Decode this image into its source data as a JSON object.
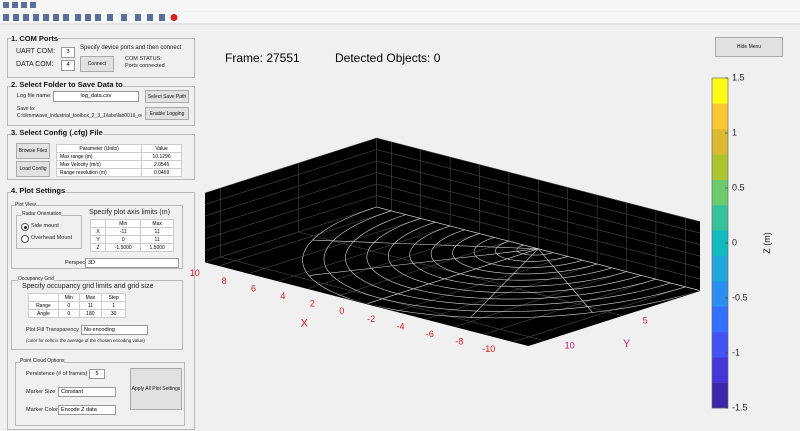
{
  "window": {
    "frame_label": "Frame: 27551",
    "detected_label": "Detected Objects: 0",
    "hide_button": "Hide Menu"
  },
  "com_ports": {
    "title": "1. COM Ports",
    "uart_label": "UART COM:",
    "uart_value": "3",
    "data_label": "DATA COM:",
    "data_value": "4",
    "instruction": "Specify device ports and then connect",
    "connect_button": "Connect",
    "status": "COM STATUS: Ports connected"
  },
  "save_folder": {
    "title": "2. Select Folder to Save Data to",
    "log_label": "Log file name:",
    "log_value": "log_data.csv",
    "select_button": "Select Save Path",
    "save_to_label": "Save to:",
    "save_path": "C:\\ti\\mmwave_industrial_toolbox_2_3_1\\labs\\lab0016_ocm",
    "logging_button": "Enable Logging"
  },
  "config": {
    "title": "3. Select Config (.cfg) File",
    "browse_button": "Browse Files",
    "load_button": "Load Config",
    "table": {
      "headers": [
        "Parameter (Units)",
        "Value"
      ],
      "rows": [
        [
          "Max range (m)",
          "10.1296"
        ],
        [
          "Max Velocity (m/s)",
          "2.0545"
        ],
        [
          "Range resolution (m)",
          "0.0469"
        ]
      ]
    }
  },
  "plot_settings": {
    "title": "4. Plot Settings",
    "plot_view": "Plot View",
    "orientation_title": "Radar Orientation",
    "side_mount": "Side mount",
    "overhead_mount": "Overhead Mount",
    "axis_limits_title": "Specify plot axis limits (m)",
    "axis_table": {
      "headers": [
        "Min",
        "Max"
      ],
      "rows": [
        [
          "X",
          "-11",
          "11"
        ],
        [
          "Y",
          "0",
          "11"
        ],
        [
          "Z",
          "-1.5000",
          "1.5000"
        ]
      ]
    },
    "perspective_label": "Perspective:",
    "perspective_value": "3D",
    "occupancy_title": "Occupancy Grid",
    "occupancy_instruction": "Specify occupancy grid limits and grid size",
    "occupancy_table": {
      "headers": [
        "Min",
        "Max",
        "Step"
      ],
      "rows": [
        [
          "Range",
          "0",
          "11",
          "1"
        ],
        [
          "Angle",
          "0",
          "180",
          "30"
        ]
      ]
    },
    "transparency_label": "Plot Fill Transparency",
    "transparency_value": "No encoding",
    "transparency_note": "(color for cells is the average of the chosen encoding value)",
    "point_cloud_title": "Point Cloud Options",
    "persistence_label": "Persistence (# of frames)",
    "persistence_value": "5",
    "marker_size_label": "Marker Size",
    "marker_size_value": "Constant",
    "marker_color_label": "Marker Color",
    "marker_color_value": "Encode Z data",
    "apply_button": "Apply All Plot Settings"
  },
  "plot": {
    "x_label": "X",
    "y_label": "Y",
    "xlim": [
      -11,
      11
    ],
    "ylim": [
      0,
      11
    ],
    "zlim": [
      -1.5,
      1.5
    ],
    "xticks": [
      10,
      8,
      6,
      4,
      2,
      0,
      -2,
      -4,
      -6,
      -8,
      -10
    ],
    "yticks": [
      0,
      5,
      10
    ]
  },
  "colorbar": {
    "label": "Z (m)",
    "lim": [
      -1.5,
      1.5
    ],
    "ticks": [
      1.5,
      1,
      0.5,
      0,
      -0.5,
      -1,
      -1.5
    ],
    "colors": [
      "#3e26a8",
      "#4538d6",
      "#4354f2",
      "#3370fe",
      "#2b8def",
      "#1ea7d9",
      "#12bac1",
      "#36c399",
      "#6ecb6c",
      "#acc52f",
      "#dcba32",
      "#fbc835",
      "#f9fb15"
    ]
  }
}
